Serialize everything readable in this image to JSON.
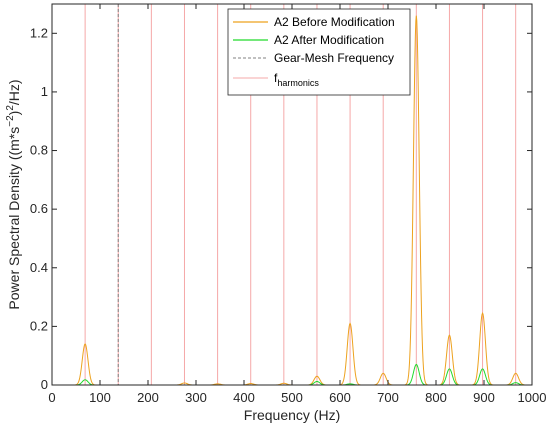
{
  "chart_data": {
    "type": "line",
    "xlabel": "Frequency (Hz)",
    "ylabel_parts": {
      "main": "Power Spectral Density ((m*s",
      "sup1": "−2",
      "mid": ")",
      "sup2": "2",
      "end": "/Hz)"
    },
    "xlim": [
      0,
      1000
    ],
    "ylim": [
      0,
      1.3
    ],
    "x_ticks": [
      0,
      100,
      200,
      300,
      400,
      500,
      600,
      700,
      800,
      900,
      1000
    ],
    "y_ticks": [
      0,
      0.2,
      0.4,
      0.6,
      0.8,
      1,
      1.2
    ],
    "grid": false,
    "legend_position": "top-right",
    "legend": [
      {
        "label": "A2 Before Modification",
        "color": "#EDA21F",
        "style": "solid"
      },
      {
        "label": "A2 After Modification",
        "color": "#21D92B",
        "style": "solid"
      },
      {
        "label": "Gear-Mesh Frequency",
        "color": "#808080",
        "style": "dashed"
      },
      {
        "label_main": "f",
        "label_sub": "harmonics",
        "color": "#F5A8A8",
        "style": "solid"
      }
    ],
    "series": [
      {
        "name": "A2 Before Modification",
        "color": "#EDA21F",
        "peak_width": 6,
        "peaks": [
          {
            "x": 69,
            "y": 0.14
          },
          {
            "x": 276,
            "y": 0.007
          },
          {
            "x": 345,
            "y": 0.004
          },
          {
            "x": 414,
            "y": 0.005
          },
          {
            "x": 483,
            "y": 0.006
          },
          {
            "x": 552,
            "y": 0.03
          },
          {
            "x": 621,
            "y": 0.21
          },
          {
            "x": 690,
            "y": 0.04
          },
          {
            "x": 759,
            "y": 1.26
          },
          {
            "x": 828,
            "y": 0.17
          },
          {
            "x": 897,
            "y": 0.245
          },
          {
            "x": 966,
            "y": 0.04
          }
        ]
      },
      {
        "name": "A2 After Modification",
        "color": "#21D92B",
        "peak_width": 6,
        "peaks": [
          {
            "x": 69,
            "y": 0.018
          },
          {
            "x": 552,
            "y": 0.012
          },
          {
            "x": 621,
            "y": 0.004
          },
          {
            "x": 759,
            "y": 0.07
          },
          {
            "x": 828,
            "y": 0.055
          },
          {
            "x": 897,
            "y": 0.055
          },
          {
            "x": 966,
            "y": 0.008
          }
        ]
      }
    ],
    "gear_mesh_frequency": {
      "x": 138,
      "color": "#808080"
    },
    "harmonics": {
      "x": [
        69,
        138,
        207,
        276,
        345,
        414,
        483,
        552,
        621,
        690,
        759,
        828,
        897,
        966
      ],
      "color": "#F5A8A8"
    }
  }
}
